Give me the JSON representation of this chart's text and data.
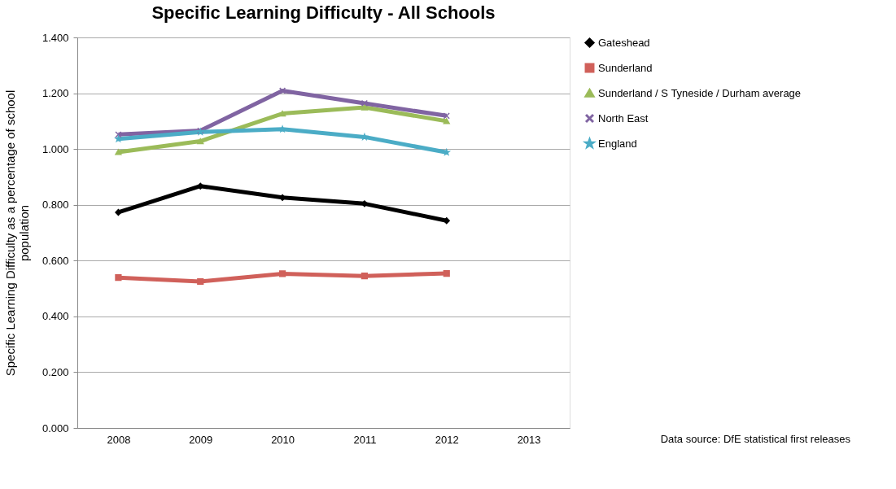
{
  "chart_data": {
    "type": "line",
    "title": "Specific Learning Difficulty - All Schools",
    "ylabel": "Specific Learning Difficulty  as a percentage of school population",
    "categories": [
      "2008",
      "2009",
      "2010",
      "2011",
      "2012",
      "2013"
    ],
    "series": [
      {
        "name": "Gateshead",
        "color": "#000000",
        "marker": "diamond",
        "values": [
          0.773,
          0.867,
          0.826,
          0.804,
          0.743,
          null
        ]
      },
      {
        "name": "Sunderland",
        "color": "#d0605a",
        "marker": "square",
        "values": [
          0.539,
          0.525,
          0.553,
          0.545,
          0.554,
          null
        ]
      },
      {
        "name": "Sunderland / S Tyneside / Durham average",
        "color": "#9bbb59",
        "marker": "triangle",
        "values": [
          0.989,
          1.028,
          1.127,
          1.149,
          1.1,
          null
        ]
      },
      {
        "name": "North East",
        "color": "#8064a2",
        "marker": "cross",
        "values": [
          1.052,
          1.066,
          1.209,
          1.164,
          1.119,
          null
        ]
      },
      {
        "name": "England",
        "color": "#4bacc6",
        "marker": "star",
        "values": [
          1.036,
          1.061,
          1.071,
          1.043,
          0.988,
          null
        ]
      }
    ],
    "ylim": [
      0,
      1.4
    ],
    "yticks": [
      {
        "value": 0,
        "label": "0.000"
      },
      {
        "value": 0.2,
        "label": "0.200"
      },
      {
        "value": 0.4,
        "label": "0.400"
      },
      {
        "value": 0.6,
        "label": "0.600"
      },
      {
        "value": 0.8,
        "label": "0.800"
      },
      {
        "value": 1.0,
        "label": "1.000"
      },
      {
        "value": 1.2,
        "label": "1.200"
      },
      {
        "value": 1.4,
        "label": "1.400"
      }
    ],
    "grid": "y",
    "legend": "right",
    "line_style": "solid",
    "annotations": [
      "Data source: DfE statistical first releases"
    ]
  }
}
